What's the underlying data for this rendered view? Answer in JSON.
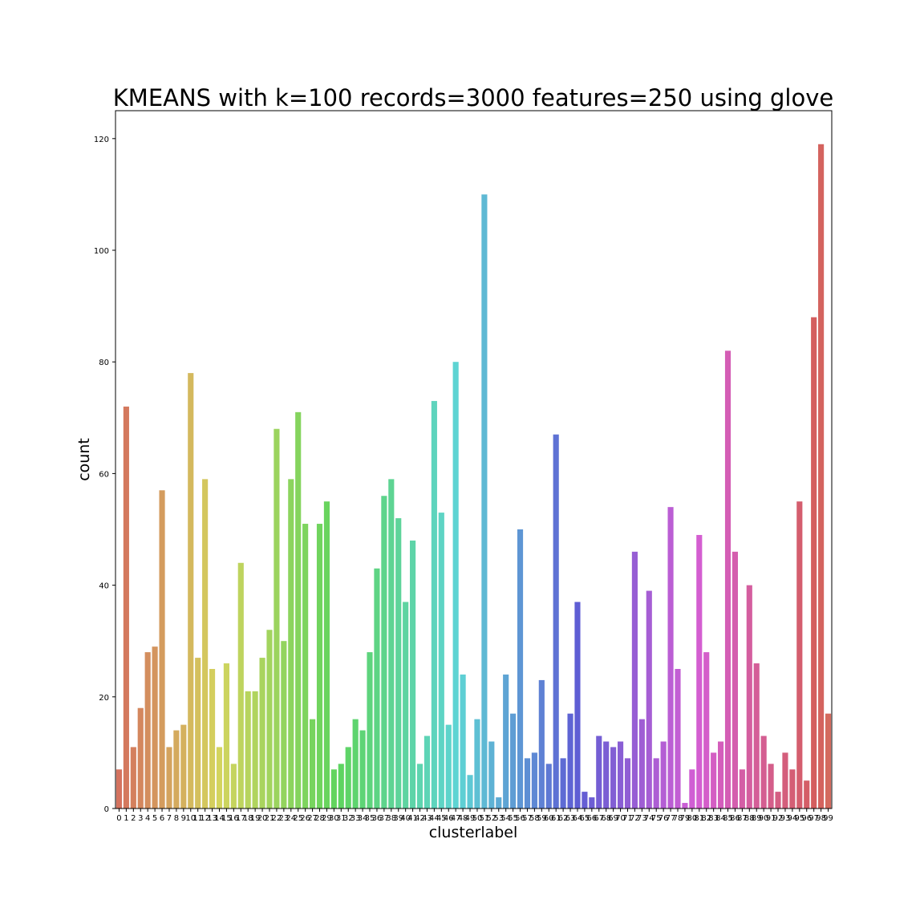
{
  "chart_data": {
    "type": "bar",
    "title": "KMEANS with k=100 records=3000 features=250 using glove",
    "xlabel": "clusterlabel",
    "ylabel": "count",
    "ylim": [
      0,
      125
    ],
    "yticks": [
      0,
      20,
      40,
      60,
      80,
      100,
      120
    ],
    "grid": false,
    "legend": "none",
    "palette": "husl",
    "categories": [
      "0",
      "1",
      "2",
      "3",
      "4",
      "5",
      "6",
      "7",
      "8",
      "9",
      "10",
      "11",
      "12",
      "13",
      "14",
      "15",
      "16",
      "17",
      "18",
      "19",
      "20",
      "21",
      "22",
      "23",
      "24",
      "25",
      "26",
      "27",
      "28",
      "29",
      "30",
      "31",
      "32",
      "33",
      "34",
      "35",
      "36",
      "37",
      "38",
      "39",
      "40",
      "41",
      "42",
      "43",
      "44",
      "45",
      "46",
      "47",
      "48",
      "49",
      "50",
      "51",
      "52",
      "53",
      "54",
      "55",
      "56",
      "57",
      "58",
      "59",
      "60",
      "61",
      "62",
      "63",
      "64",
      "65",
      "66",
      "67",
      "68",
      "69",
      "70",
      "71",
      "72",
      "73",
      "74",
      "75",
      "76",
      "77",
      "78",
      "79",
      "80",
      "81",
      "82",
      "83",
      "84",
      "85",
      "86",
      "87",
      "88",
      "89",
      "90",
      "91",
      "92",
      "93",
      "94",
      "95",
      "96",
      "97",
      "98",
      "99"
    ],
    "values": [
      7,
      72,
      11,
      18,
      28,
      29,
      57,
      11,
      14,
      15,
      78,
      27,
      59,
      25,
      11,
      26,
      8,
      44,
      21,
      21,
      27,
      32,
      68,
      30,
      59,
      71,
      51,
      16,
      51,
      55,
      7,
      8,
      11,
      16,
      14,
      28,
      43,
      56,
      59,
      52,
      37,
      48,
      8,
      13,
      73,
      53,
      15,
      80,
      24,
      6,
      16,
      110,
      12,
      2,
      24,
      17,
      50,
      9,
      10,
      23,
      8,
      67,
      9,
      17,
      37,
      3,
      2,
      13,
      12,
      11,
      12,
      9,
      46,
      16,
      39,
      9,
      12,
      54,
      25,
      1,
      7,
      49,
      28,
      10,
      12,
      82,
      46,
      7,
      40,
      26,
      13,
      8,
      3,
      10,
      7,
      55,
      5,
      88,
      119,
      17
    ]
  }
}
